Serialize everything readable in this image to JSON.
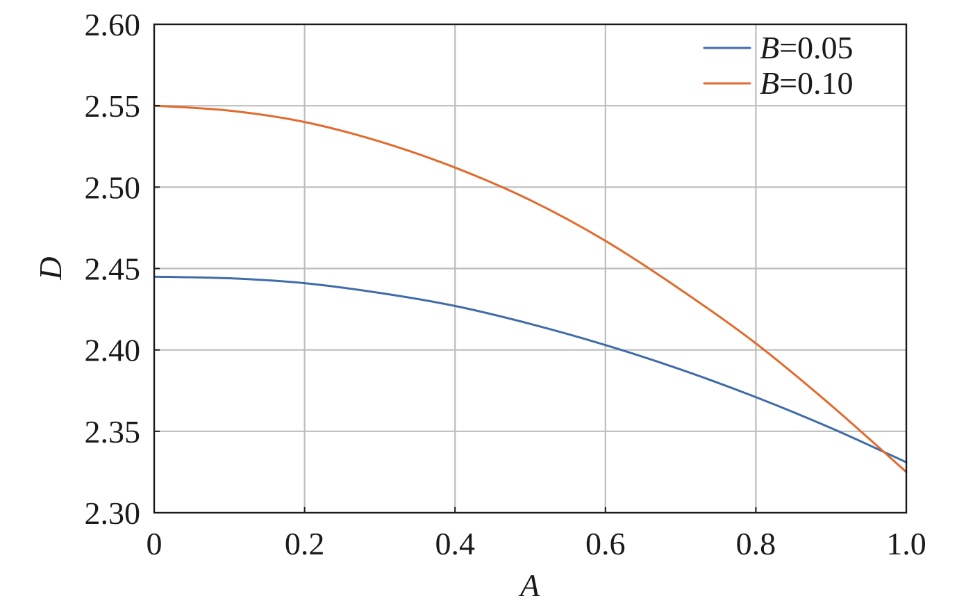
{
  "chart_data": {
    "type": "line",
    "title": "",
    "xlabel": "A",
    "ylabel": "D",
    "xlim": [
      0,
      1.0
    ],
    "ylim": [
      2.3,
      2.6
    ],
    "grid": true,
    "legend_position": "top-right",
    "x_ticks": [
      0,
      0.2,
      0.4,
      0.6,
      0.8,
      1.0
    ],
    "x_tick_labels": [
      "0",
      "0.2",
      "0.4",
      "0.6",
      "0.8",
      "1.0"
    ],
    "y_ticks": [
      2.3,
      2.35,
      2.4,
      2.45,
      2.5,
      2.55,
      2.6
    ],
    "y_tick_labels": [
      "2.30",
      "2.35",
      "2.40",
      "2.45",
      "2.50",
      "2.55",
      "2.60"
    ],
    "x": [
      0,
      0.1,
      0.2,
      0.3,
      0.4,
      0.5,
      0.6,
      0.7,
      0.8,
      0.9,
      1.0
    ],
    "series": [
      {
        "name": "B=0.05",
        "name_var": "B",
        "name_value": "=0.05",
        "color": "#3f6ca8",
        "values": [
          2.445,
          2.444,
          2.441,
          2.435,
          2.427,
          2.416,
          2.403,
          2.388,
          2.371,
          2.352,
          2.331
        ]
      },
      {
        "name": "B=0.10",
        "name_var": "B",
        "name_value": "=0.10",
        "color": "#e36a2c",
        "values": [
          2.55,
          2.547,
          2.54,
          2.528,
          2.512,
          2.492,
          2.467,
          2.437,
          2.404,
          2.366,
          2.325
        ]
      }
    ]
  }
}
